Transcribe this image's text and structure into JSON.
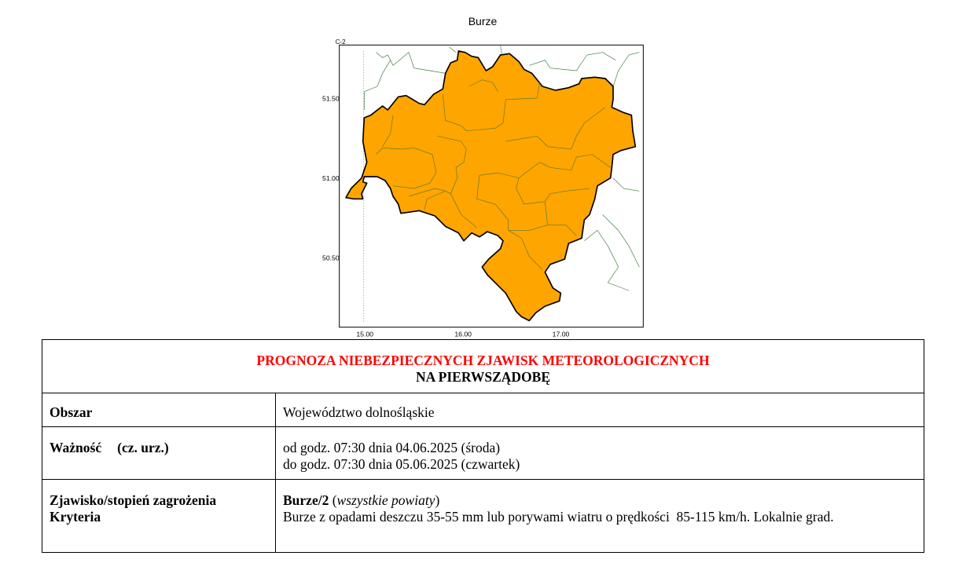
{
  "map": {
    "title": "Burze",
    "corner_label": "C-2",
    "lat_labels": [
      "51.50",
      "51.00",
      "50.50"
    ],
    "lon_labels": [
      "15.00",
      "16.00",
      "17.00"
    ],
    "fill_color": "#FFA500"
  },
  "table": {
    "title_line1": "PROGNOZA NIEBEZPIECZNYCH ZJAWISK METEOROLOGICZNYCH",
    "title_line2": "NA PIERWSZĄDOBĘ",
    "title_color": "#FF0000",
    "rows": [
      {
        "label": "Obszar",
        "value": "Województwo dolnośląskie"
      },
      {
        "label": "Ważność",
        "label_suffix": "(cz. urz.)",
        "value_line1": "od godz. 07:30 dnia 04.06.2025 (środa)",
        "value_line2": "do godz. 07:30 dnia 05.06.2025 (czwartek)"
      },
      {
        "label": "Zjawisko/stopień zagrożenia",
        "label2": "Kryteria",
        "phenomenon": "Burze/2",
        "scope": "wszystkie powiaty",
        "criteria": "Burze z opadami deszczu 35-55 mm lub porywami wiatru o prędkości  85-115 km/h. Lokalnie grad."
      }
    ]
  }
}
